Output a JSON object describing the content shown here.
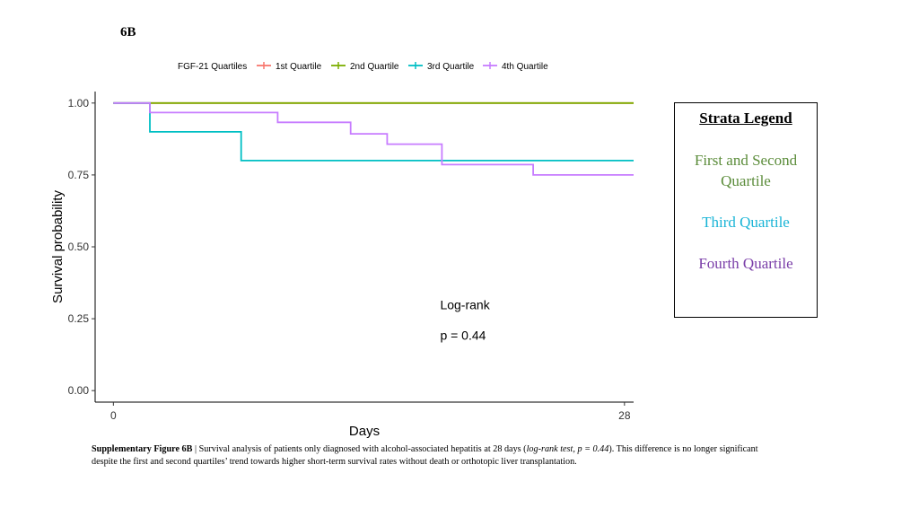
{
  "figure_label": "6B",
  "chart_data": {
    "type": "line",
    "subtype": "kaplan-meier step",
    "legend_title": "FGF-21 Quartiles",
    "legend_position": "top",
    "xlabel": "Days",
    "ylabel": "Survival probability",
    "xlim": [
      -1,
      28.5
    ],
    "ylim": [
      -0.04,
      1.04
    ],
    "x_ticks": [
      0,
      28
    ],
    "y_ticks": [
      0.0,
      0.25,
      0.5,
      0.75,
      1.0
    ],
    "y_tick_labels": [
      "0.00",
      "0.25",
      "0.50",
      "0.75",
      "1.00"
    ],
    "grid": false,
    "series": [
      {
        "name": "1st Quartile",
        "color": "#f8766d",
        "points": [
          [
            0,
            1.0
          ],
          [
            28.5,
            1.0
          ]
        ]
      },
      {
        "name": "2nd Quartile",
        "color": "#7cae00",
        "points": [
          [
            0,
            1.0
          ],
          [
            28.5,
            1.0
          ]
        ]
      },
      {
        "name": "3rd Quartile",
        "color": "#00bfc4",
        "points": [
          [
            0,
            1.0
          ],
          [
            2,
            1.0
          ],
          [
            2,
            0.9
          ],
          [
            7,
            0.9
          ],
          [
            7,
            0.8
          ],
          [
            28.5,
            0.8
          ]
        ]
      },
      {
        "name": "4th Quartile",
        "color": "#c77cff",
        "points": [
          [
            0,
            1.0
          ],
          [
            2,
            1.0
          ],
          [
            2,
            0.967
          ],
          [
            9,
            0.967
          ],
          [
            9,
            0.933
          ],
          [
            13,
            0.933
          ],
          [
            13,
            0.893
          ],
          [
            15,
            0.893
          ],
          [
            15,
            0.857
          ],
          [
            18,
            0.857
          ],
          [
            18,
            0.786
          ],
          [
            23,
            0.786
          ],
          [
            23,
            0.75
          ],
          [
            28.5,
            0.75
          ]
        ]
      }
    ],
    "annotation": {
      "line1": "Log-rank",
      "line2": "p = 0.44",
      "x": 18,
      "y_line1": 0.295,
      "y_line2": 0.19
    }
  },
  "strata_legend": {
    "title": "Strata Legend",
    "first_second": "First and Second Quartile",
    "third": "Third Quartile",
    "fourth": "Fourth Quartile",
    "colors": {
      "first_second": "#5b8c3a",
      "third": "#19b4d6",
      "fourth": "#7a3ea8"
    }
  },
  "caption": {
    "label": "Supplementary Figure 6B",
    "separator": " | ",
    "text_before": "Survival analysis of patients only diagnosed with alcohol-associated hepatitis at 28 days (",
    "italic": "log-rank test, p = 0.44",
    "text_after": "). This difference is no longer significant despite the first and second quartiles’ trend towards higher short-term survival rates without death or orthotopic liver transplantation."
  }
}
